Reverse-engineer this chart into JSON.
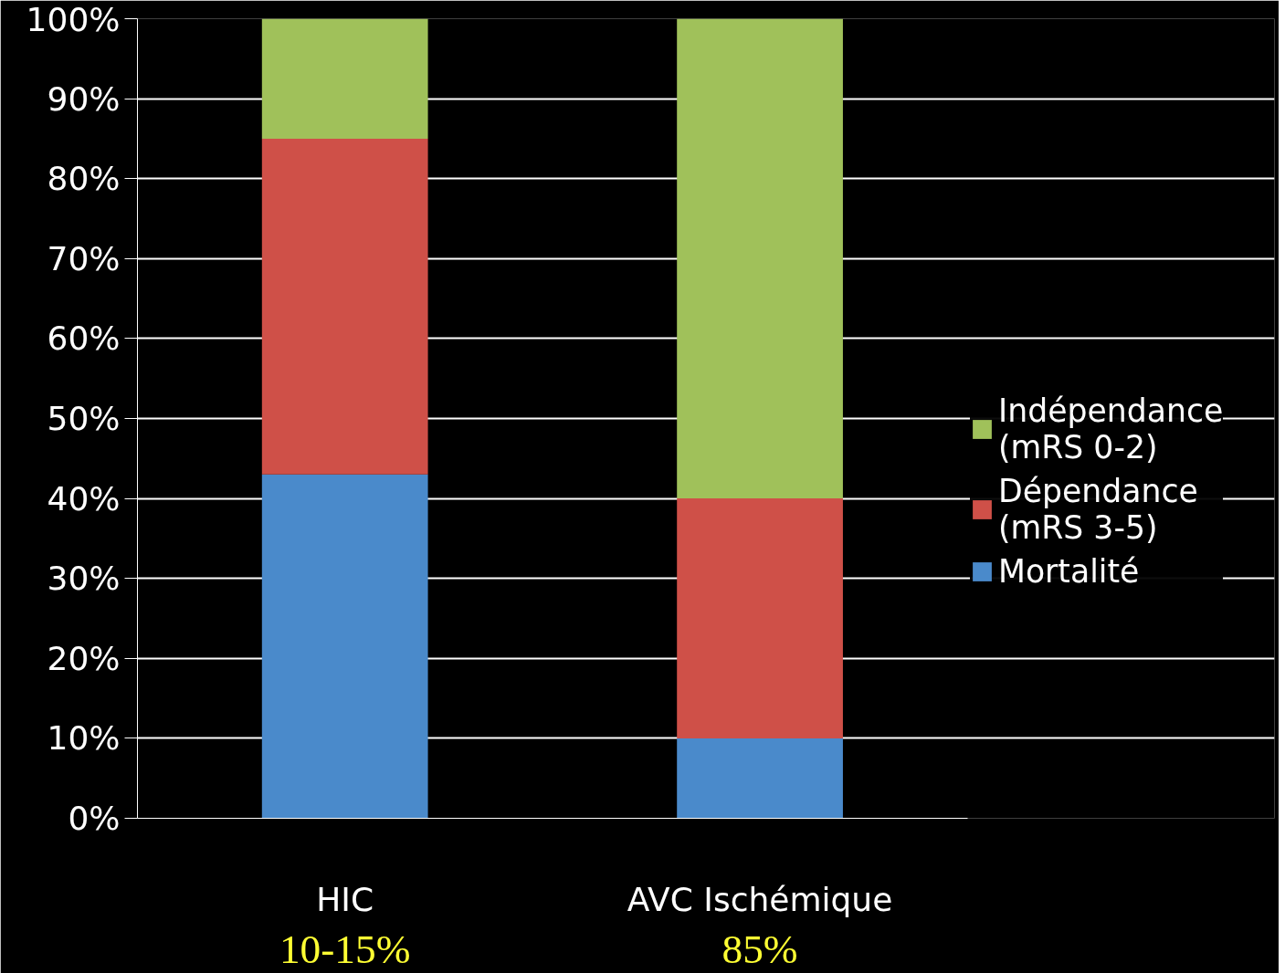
{
  "chart_data": {
    "type": "bar",
    "stacked": true,
    "categories": [
      "HIC",
      "AVC Ischémique"
    ],
    "series": [
      {
        "name": "Mortalité",
        "color": "#4a8acb",
        "values": [
          43,
          10
        ]
      },
      {
        "name": "Dépendance\n(mRS 3-5)",
        "color": "#cf5048",
        "values": [
          42,
          30
        ]
      },
      {
        "name": "Indépendance\n(mRS 0-2)",
        "color": "#a0c15a",
        "values": [
          15,
          60
        ]
      }
    ],
    "ylim": [
      0,
      100
    ],
    "yticks": [
      {
        "value": 0,
        "label": "0%"
      },
      {
        "value": 10,
        "label": "10%"
      },
      {
        "value": 20,
        "label": "20%"
      },
      {
        "value": 30,
        "label": "30%"
      },
      {
        "value": 40,
        "label": "40%"
      },
      {
        "value": 50,
        "label": "50%"
      },
      {
        "value": 60,
        "label": "60%"
      },
      {
        "value": 70,
        "label": "70%"
      },
      {
        "value": 80,
        "label": "80%"
      },
      {
        "value": 90,
        "label": "90%"
      },
      {
        "value": 100,
        "label": "100%"
      }
    ],
    "grid": "y",
    "legend": "right",
    "annotations": [
      "10-15%",
      "85%"
    ]
  }
}
